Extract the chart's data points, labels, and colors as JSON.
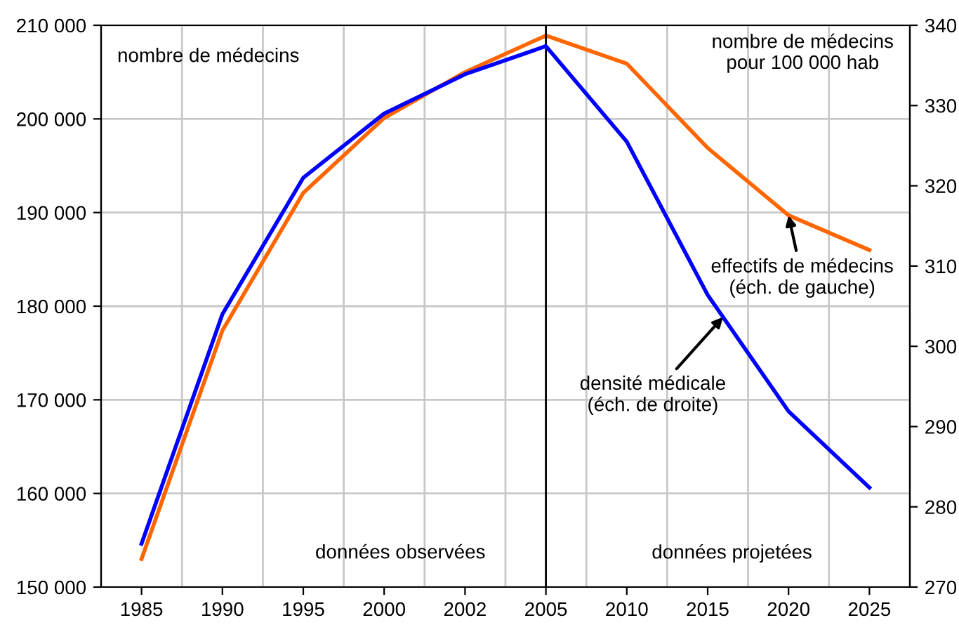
{
  "chart_data": {
    "type": "line",
    "categories": [
      "1985",
      "1990",
      "1995",
      "2000",
      "2002",
      "2005",
      "2010",
      "2015",
      "2020",
      "2025"
    ],
    "ylabel": "nombre de médecins",
    "y2label": "nombre de médecins\npour 100 000 hab",
    "series": [
      {
        "name": "effectifs de médecins\n(éch. de gauche)",
        "color": "#ff6600",
        "values": [
          153000,
          177400,
          192100,
          200100,
          205000,
          208900,
          205900,
          196900,
          189700,
          186000
        ]
      },
      {
        "name": "densité médicale\n(éch. de droite)",
        "color": "#0000ff",
        "axis": "y2",
        "values": [
          275.4,
          304.0,
          321.0,
          329.0,
          333.9,
          337.4,
          325.5,
          306.4,
          291.9,
          282.4
        ]
      }
    ],
    "ylim": [
      150000,
      210000
    ],
    "yticks": [
      {
        "value": 150000,
        "label": "150 000"
      },
      {
        "value": 160000,
        "label": "160 000"
      },
      {
        "value": 170000,
        "label": "170 000"
      },
      {
        "value": 180000,
        "label": "180 000"
      },
      {
        "value": 190000,
        "label": "190 000"
      },
      {
        "value": 200000,
        "label": "200 000"
      },
      {
        "value": 210000,
        "label": "210 000"
      }
    ],
    "y2lim": [
      270,
      340
    ],
    "y2ticks": [
      270,
      280,
      290,
      300,
      310,
      320,
      330,
      340
    ],
    "ref_lines": [
      {
        "axis": "x",
        "value": "2005",
        "color": "#000000"
      }
    ],
    "annotations": [
      "données observées",
      "données projetées"
    ],
    "grid": true,
    "legend": false,
    "marker": "none",
    "line_style": "solid"
  }
}
